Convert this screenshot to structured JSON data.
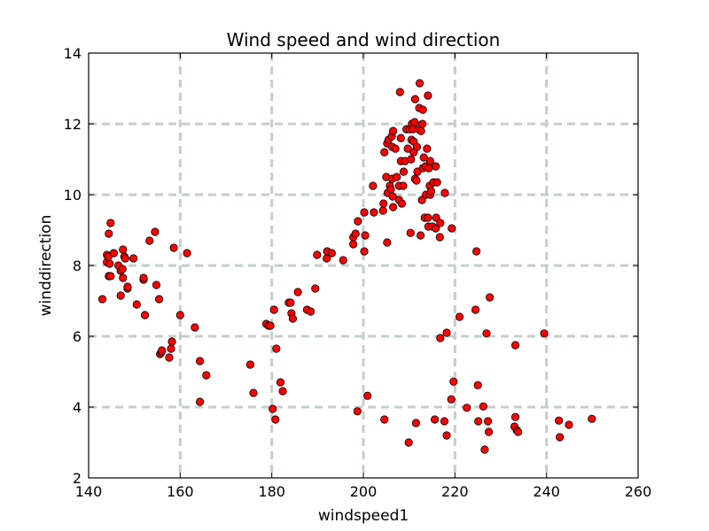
{
  "chart_data": {
    "type": "scatter",
    "title": "Wind speed and wind direction",
    "xlabel": "windspeed1",
    "ylabel": "winddirection",
    "xlim": [
      140,
      260
    ],
    "ylim": [
      2,
      14
    ],
    "xticks": [
      "140",
      "160",
      "180",
      "200",
      "220",
      "240",
      "260"
    ],
    "yticks": [
      "2",
      "4",
      "6",
      "8",
      "10",
      "12",
      "14"
    ],
    "grid": true,
    "marker_color": "#ff0000",
    "points": [
      [
        143.0,
        7.05
      ],
      [
        144.0,
        8.1
      ],
      [
        144.0,
        8.3
      ],
      [
        144.4,
        8.9
      ],
      [
        144.8,
        9.2
      ],
      [
        144.3,
        8.25
      ],
      [
        144.6,
        8.05
      ],
      [
        144.4,
        7.7
      ],
      [
        144.8,
        7.7
      ],
      [
        145.5,
        8.35
      ],
      [
        146.5,
        8.0
      ],
      [
        147.0,
        7.85
      ],
      [
        147.0,
        7.15
      ],
      [
        147.4,
        7.9
      ],
      [
        147.5,
        8.45
      ],
      [
        147.8,
        8.25
      ],
      [
        148.0,
        8.2
      ],
      [
        148.5,
        7.35
      ],
      [
        148.5,
        7.4
      ],
      [
        149.8,
        8.2
      ],
      [
        147.5,
        7.65
      ],
      [
        150.5,
        6.9
      ],
      [
        152.0,
        7.6
      ],
      [
        152.0,
        7.65
      ],
      [
        152.3,
        6.6
      ],
      [
        153.3,
        8.7
      ],
      [
        154.5,
        8.95
      ],
      [
        154.8,
        7.45
      ],
      [
        155.4,
        7.05
      ],
      [
        155.6,
        5.5
      ],
      [
        155.9,
        5.55
      ],
      [
        156.0,
        5.6
      ],
      [
        157.6,
        5.4
      ],
      [
        158.0,
        5.65
      ],
      [
        158.2,
        5.85
      ],
      [
        158.6,
        8.5
      ],
      [
        160.0,
        6.6
      ],
      [
        161.5,
        8.35
      ],
      [
        163.2,
        6.25
      ],
      [
        164.3,
        4.15
      ],
      [
        164.3,
        5.3
      ],
      [
        165.7,
        4.9
      ],
      [
        175.3,
        5.2
      ],
      [
        176.0,
        4.4
      ],
      [
        178.8,
        6.35
      ],
      [
        179.3,
        6.3
      ],
      [
        179.7,
        6.3
      ],
      [
        180.2,
        3.95
      ],
      [
        180.5,
        6.75
      ],
      [
        180.8,
        3.65
      ],
      [
        181.0,
        5.65
      ],
      [
        181.9,
        4.7
      ],
      [
        182.4,
        4.45
      ],
      [
        183.7,
        6.95
      ],
      [
        184.1,
        6.95
      ],
      [
        184.3,
        6.65
      ],
      [
        184.6,
        6.5
      ],
      [
        185.7,
        7.25
      ],
      [
        187.7,
        6.75
      ],
      [
        188.5,
        6.7
      ],
      [
        189.5,
        7.35
      ],
      [
        189.9,
        8.3
      ],
      [
        192.0,
        8.2
      ],
      [
        192.1,
        8.4
      ],
      [
        193.1,
        8.35
      ],
      [
        195.6,
        8.15
      ],
      [
        197.8,
        8.8
      ],
      [
        197.8,
        8.6
      ],
      [
        198.3,
        8.9
      ],
      [
        198.8,
        9.25
      ],
      [
        198.7,
        3.88
      ],
      [
        200.2,
        9.5
      ],
      [
        200.4,
        8.85
      ],
      [
        200.2,
        8.4
      ],
      [
        200.9,
        4.32
      ],
      [
        202.1,
        10.25
      ],
      [
        202.3,
        9.5
      ],
      [
        204.3,
        9.55
      ],
      [
        204.4,
        9.75
      ],
      [
        204.6,
        11.2
      ],
      [
        204.6,
        3.65
      ],
      [
        205.0,
        10.5
      ],
      [
        205.2,
        8.65
      ],
      [
        205.2,
        11.45
      ],
      [
        205.3,
        10.05
      ],
      [
        205.5,
        11.55
      ],
      [
        205.8,
        10.25
      ],
      [
        206.0,
        10.15
      ],
      [
        206.2,
        11.65
      ],
      [
        206.3,
        10.45
      ],
      [
        206.5,
        11.8
      ],
      [
        206.3,
        11.35
      ],
      [
        206.4,
        9.95
      ],
      [
        206.5,
        9.65
      ],
      [
        207.0,
        11.3
      ],
      [
        207.3,
        10.5
      ],
      [
        207.8,
        10.25
      ],
      [
        207.8,
        9.85
      ],
      [
        208.0,
        12.9
      ],
      [
        208.2,
        10.95
      ],
      [
        208.2,
        11.6
      ],
      [
        208.4,
        9.75
      ],
      [
        208.7,
        10.25
      ],
      [
        208.8,
        10.65
      ],
      [
        209.1,
        10.95
      ],
      [
        209.4,
        11.85
      ],
      [
        209.7,
        11.3
      ],
      [
        209.9,
        3.0
      ],
      [
        210.1,
        11.85
      ],
      [
        210.3,
        8.92
      ],
      [
        210.4,
        11.0
      ],
      [
        210.5,
        11.55
      ],
      [
        210.6,
        12.0
      ],
      [
        210.8,
        11.85
      ],
      [
        211.0,
        11.2
      ],
      [
        211.0,
        11.5
      ],
      [
        211.2,
        12.05
      ],
      [
        211.3,
        10.45
      ],
      [
        211.3,
        12.7
      ],
      [
        211.5,
        3.55
      ],
      [
        211.6,
        10.4
      ],
      [
        211.7,
        11.35
      ],
      [
        211.8,
        10.65
      ],
      [
        212.1,
        11.85
      ],
      [
        212.2,
        12.45
      ],
      [
        212.3,
        13.15
      ],
      [
        212.5,
        8.85
      ],
      [
        212.6,
        11.8
      ],
      [
        212.8,
        9.85
      ],
      [
        212.9,
        12.0
      ],
      [
        213.0,
        10.75
      ],
      [
        213.0,
        12.4
      ],
      [
        213.2,
        11.05
      ],
      [
        213.4,
        9.35
      ],
      [
        213.6,
        10.8
      ],
      [
        213.7,
        10.0
      ],
      [
        213.9,
        11.3
      ],
      [
        214.1,
        12.8
      ],
      [
        214.1,
        9.35
      ],
      [
        214.2,
        9.1
      ],
      [
        214.3,
        10.75
      ],
      [
        214.5,
        10.25
      ],
      [
        214.6,
        10.95
      ],
      [
        214.6,
        10.0
      ],
      [
        214.8,
        10.1
      ],
      [
        215.1,
        9.1
      ],
      [
        215.3,
        10.35
      ],
      [
        215.6,
        3.65
      ],
      [
        215.8,
        10.8
      ],
      [
        215.8,
        9.05
      ],
      [
        215.9,
        9.35
      ],
      [
        216.1,
        10.35
      ],
      [
        216.7,
        8.8
      ],
      [
        216.8,
        9.2
      ],
      [
        216.8,
        5.95
      ],
      [
        217.7,
        3.6
      ],
      [
        217.8,
        10.05
      ],
      [
        218.2,
        6.1
      ],
      [
        218.2,
        3.2
      ],
      [
        219.2,
        4.22
      ],
      [
        219.3,
        9.05
      ],
      [
        219.7,
        4.72
      ],
      [
        221.0,
        6.55
      ],
      [
        222.6,
        3.98
      ],
      [
        224.5,
        6.75
      ],
      [
        224.7,
        8.4
      ],
      [
        225.0,
        4.62
      ],
      [
        225.1,
        3.6
      ],
      [
        226.2,
        4.02
      ],
      [
        226.5,
        2.8
      ],
      [
        226.9,
        6.08
      ],
      [
        227.2,
        3.6
      ],
      [
        227.4,
        3.3
      ],
      [
        227.6,
        7.1
      ],
      [
        233.2,
        3.72
      ],
      [
        233.2,
        5.75
      ],
      [
        233.0,
        3.45
      ],
      [
        233.5,
        3.35
      ],
      [
        233.8,
        3.3
      ],
      [
        239.5,
        6.08
      ],
      [
        242.7,
        3.62
      ],
      [
        242.9,
        3.15
      ],
      [
        244.9,
        3.5
      ],
      [
        249.9,
        3.67
      ]
    ]
  }
}
